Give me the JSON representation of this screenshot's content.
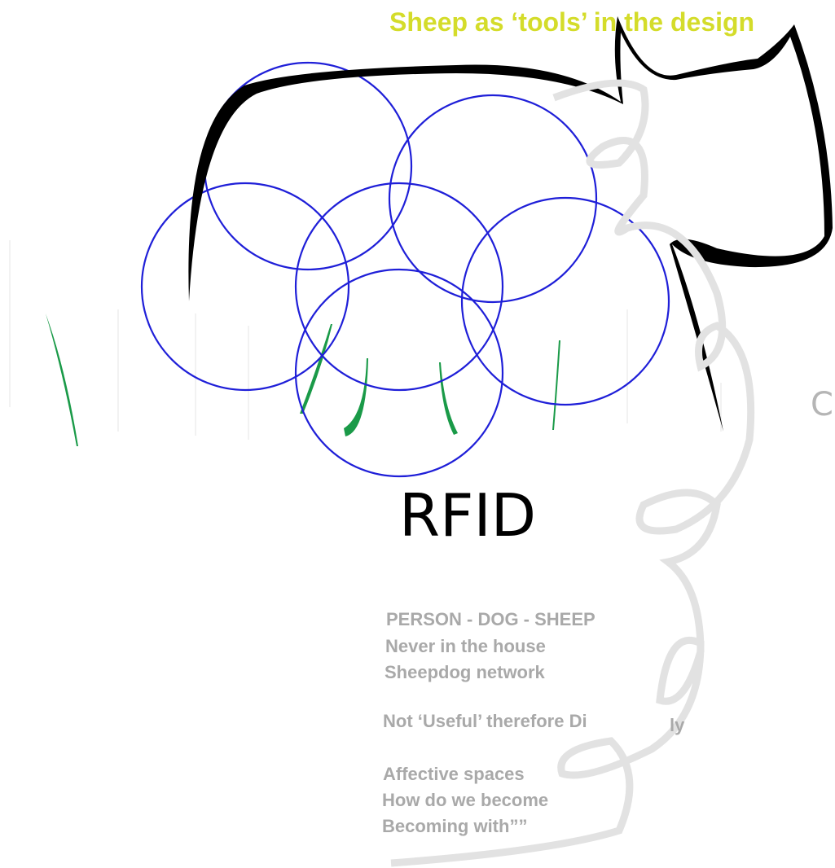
{
  "title": "Sheep as ‘tools’ in the design",
  "label": "RFID",
  "side_letter": "C",
  "notes": [
    "PERSON - DOG - SHEEP",
    "Never in the house",
    "Sheepdog network",
    "Not ‘Useful’ therefore Di",
    "ly",
    "Affective spaces",
    "How do we become",
    "Becoming with””"
  ]
}
